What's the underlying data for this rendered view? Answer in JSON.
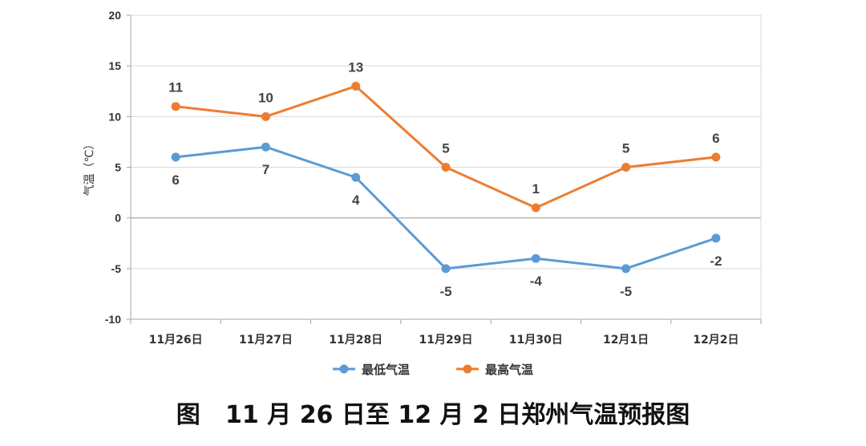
{
  "caption": "图   11 月 26 日至 12 月 2 日郑州气温预报图",
  "colors": {
    "low": "#5b9bd5",
    "high": "#ed7d31",
    "axis": "#a6a6a6",
    "grid": "#d9d9d9"
  },
  "chart_data": {
    "type": "line",
    "title": "",
    "xlabel": "",
    "ylabel": "气温（℃）",
    "categories": [
      "11月26日",
      "11月27日",
      "11月28日",
      "11月29日",
      "11月30日",
      "12月1日",
      "12月2日"
    ],
    "ylim": [
      -10,
      20
    ],
    "yticks": [
      20,
      15,
      10,
      5,
      0,
      -5,
      -10
    ],
    "grid": true,
    "legend_position": "bottom",
    "series": [
      {
        "name": "最低气温",
        "values": [
          6,
          7,
          4,
          -5,
          -4,
          -5,
          -2
        ],
        "labels": [
          "6",
          "7",
          "4",
          "-5",
          "-4",
          "-5",
          "-2"
        ],
        "label_position": "below"
      },
      {
        "name": "最高气温",
        "values": [
          11,
          10,
          13,
          5,
          1,
          5,
          6
        ],
        "labels": [
          "11",
          "10",
          "13",
          "5",
          "1",
          "5",
          "6"
        ],
        "label_position": "above"
      }
    ]
  }
}
